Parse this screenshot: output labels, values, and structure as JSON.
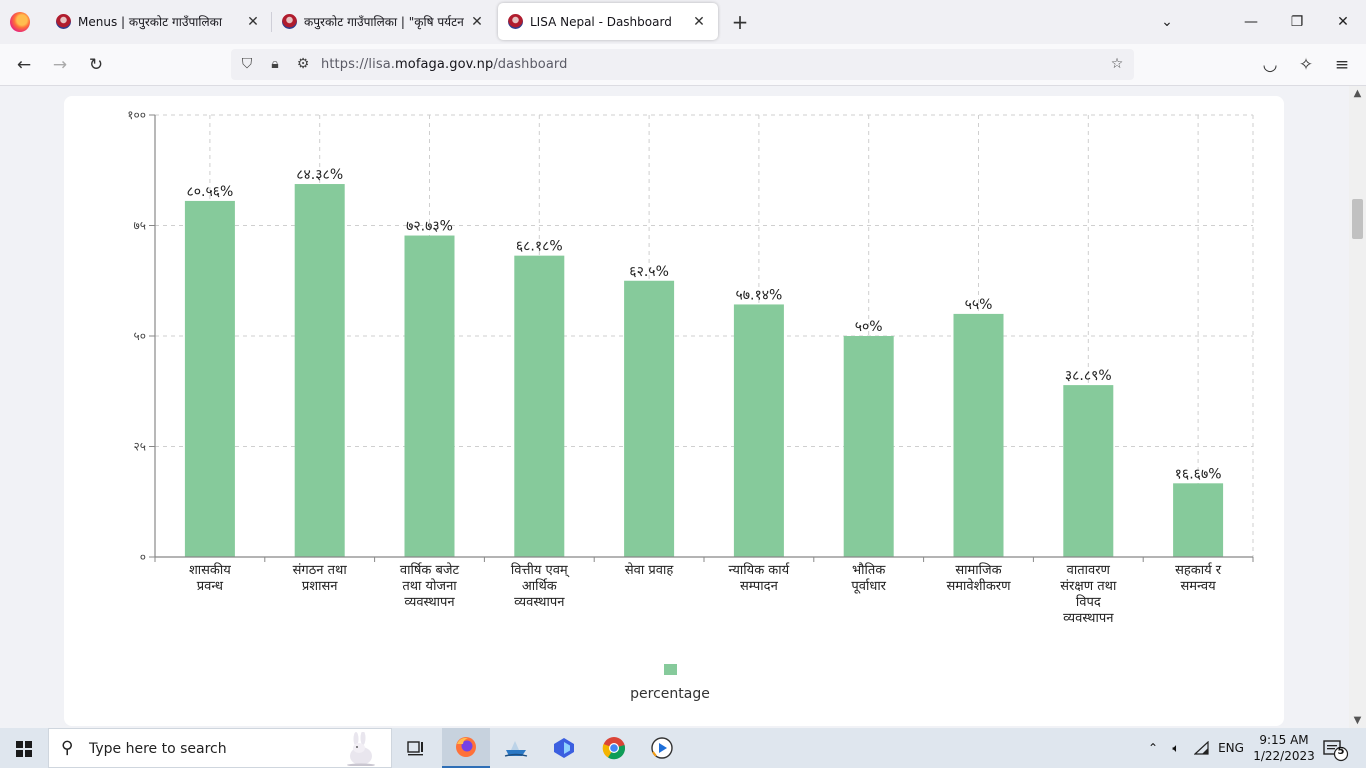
{
  "browser": {
    "tabs": [
      {
        "title": "Menus | कपुरकोट गाउँपालिका",
        "active": false
      },
      {
        "title": "कपुरकोट गाउँपालिका | \"कृषि पर्यटन",
        "active": false
      },
      {
        "title": "LISA Nepal - Dashboard",
        "active": true
      }
    ],
    "url_prefix": "https://lisa.",
    "url_host": "mofaga.gov.np",
    "url_path": "/dashboard"
  },
  "chart_data": {
    "type": "bar",
    "categories": [
      [
        "शासकीय",
        "प्रवन्ध"
      ],
      [
        "संगठन तथा",
        "प्रशासन"
      ],
      [
        "वार्षिक बजेट",
        "तथा योजना",
        "व्यवस्थापन"
      ],
      [
        "वित्तीय एवम्",
        "आर्थिक",
        "व्यवस्थापन"
      ],
      [
        "सेवा प्रवाह"
      ],
      [
        "न्यायिक कार्य",
        "सम्पादन"
      ],
      [
        "भौतिक",
        "पूर्वाधार"
      ],
      [
        "सामाजिक",
        "समावेशीकरण"
      ],
      [
        "वातावरण",
        "संरक्षण तथा",
        "विपद",
        "व्यवस्थापन"
      ],
      [
        "सहकार्य र",
        "समन्वय"
      ]
    ],
    "series": [
      {
        "name": "percentage",
        "values": [
          80.56,
          84.38,
          72.73,
          68.18,
          62.5,
          57.14,
          50,
          55,
          38.89,
          16.67
        ],
        "labels": [
          "८०.५६%",
          "८४.३८%",
          "७२.७३%",
          "६८.१८%",
          "६२.५%",
          "५७.१४%",
          "५०%",
          "५५%",
          "३८.८९%",
          "१६.६७%"
        ]
      }
    ],
    "ylim": [
      0,
      100
    ],
    "yticks": [
      0,
      25,
      50,
      75,
      100
    ],
    "ytick_labels": [
      "०",
      "२५",
      "५०",
      "७५",
      "१००"
    ],
    "bar_color": "#86ca9b",
    "grid": true,
    "legend_position": "bottom-center"
  },
  "taskbar": {
    "search_placeholder": "Type here to search",
    "language": "ENG",
    "time": "9:15 AM",
    "date": "1/22/2023",
    "notification_count": "5"
  }
}
